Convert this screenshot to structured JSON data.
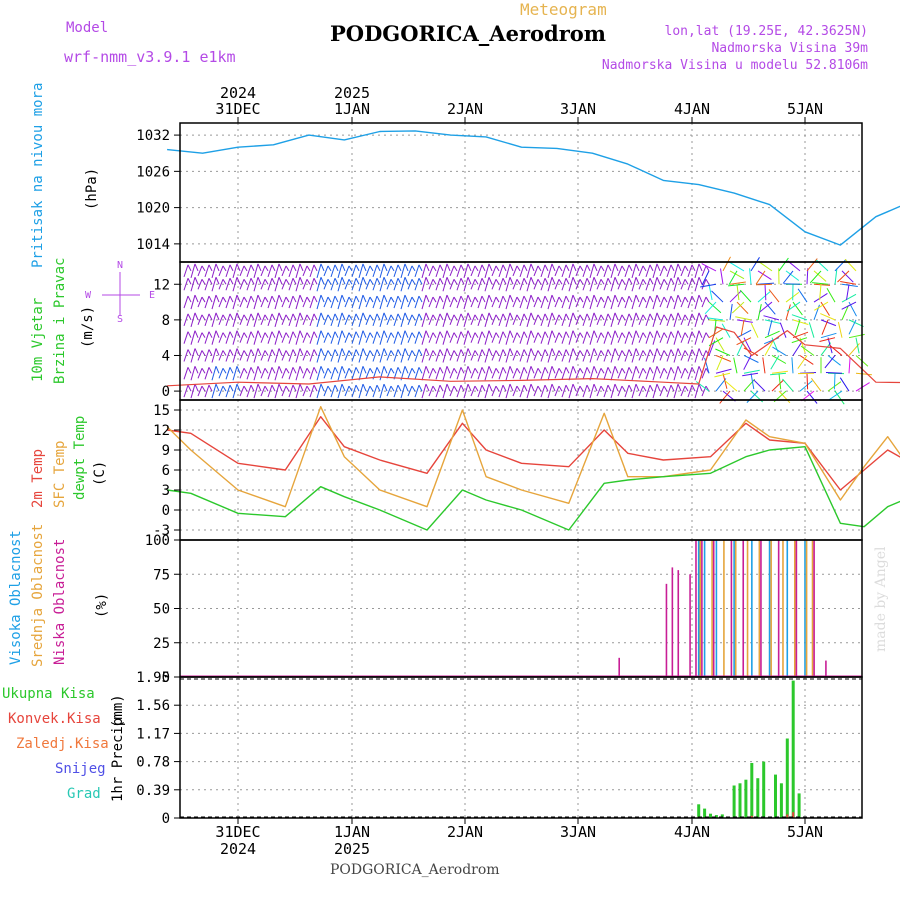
{
  "header": {
    "model_label": "Model",
    "model_name": "wrf-nmm_v3.9.1  e1km",
    "meteogram_label": "Meteogram",
    "station_title": "PODGORICA_Aerodrom",
    "lonlat": "lon,lat (19.25E, 42.3625N)",
    "elevation": "Nadmorska Visina 39m",
    "model_elevation": "Nadmorska Visina u modelu 52.8106m",
    "footer_station": "PODGORICA_Aerodrom",
    "credit": "made by Angel"
  },
  "colors": {
    "pressure": "#1ea0e6",
    "temp2m": "#e6453c",
    "sfc_temp": "#e6a53c",
    "dewpt": "#2cc82c",
    "high_cloud": "#1ea0e6",
    "mid_cloud": "#e6a53c",
    "low_cloud": "#c81e96",
    "total_precip": "#2cc82c",
    "conv_precip": "#e6453c",
    "frozen_precip": "#f0783c",
    "snow": "#5050e6",
    "graupel": "#28c8b4",
    "wind_purple": "#8c1ec8",
    "wind_blue": "#1e5ae6",
    "title_purple": "#b44ae6",
    "meteogram_orange": "#e6b450"
  },
  "time_axis": {
    "top_day_labels": [
      "31DEC",
      "1JAN",
      "2JAN",
      "3JAN",
      "4JAN",
      "5JAN"
    ],
    "top_year_labels": [
      "2024",
      "2025"
    ],
    "bottom_day_labels": [
      "31DEC",
      "1JAN",
      "2JAN",
      "3JAN",
      "4JAN",
      "5JAN"
    ],
    "bottom_year_labels": [
      "2024",
      "2025"
    ]
  },
  "chart_data": [
    {
      "type": "line",
      "panel": "pressure",
      "ylabel": "Pritisak na nivou mora",
      "unit": "(hPa)",
      "yticks": [
        "1014",
        "1020",
        "1026",
        "1032"
      ],
      "ylim": [
        1011,
        1034
      ],
      "grid": true,
      "x": [
        "30DEC12",
        "30DEC18",
        "31DEC00",
        "31DEC06",
        "31DEC12",
        "31DEC18",
        "1JAN00",
        "1JAN06",
        "1JAN12",
        "1JAN18",
        "2JAN00",
        "2JAN06",
        "2JAN12",
        "2JAN18",
        "3JAN00",
        "3JAN06",
        "3JAN12",
        "3JAN18",
        "4JAN00",
        "4JAN06",
        "4JAN12",
        "4JAN18",
        "5JAN00",
        "5JAN06",
        "5JAN12"
      ],
      "values": [
        1029.6,
        1029.0,
        1030.0,
        1030.4,
        1032.0,
        1031.2,
        1032.6,
        1032.7,
        1032.0,
        1031.7,
        1030.0,
        1029.8,
        1029.0,
        1027.2,
        1024.5,
        1023.8,
        1022.4,
        1020.5,
        1016.0,
        1013.8,
        1018.5,
        1021.0,
        1019.2,
        1020.2,
        1020.4
      ]
    },
    {
      "type": "line",
      "panel": "wind",
      "ylabel": "10m Vjetar Brzina i Pravac",
      "unit": "(m/s)",
      "compass": [
        "N",
        "W",
        "E",
        "S"
      ],
      "yticks": [
        "0",
        "4",
        "8",
        "12"
      ],
      "ylim": [
        -1,
        14.5
      ],
      "grid": true,
      "series": [
        {
          "name": "wind speed",
          "x": [
            "30DEC12",
            "31DEC00",
            "31DEC12",
            "1JAN00",
            "1JAN12",
            "2JAN00",
            "2JAN12",
            "3JAN00",
            "3JAN06",
            "3JAN09",
            "3JAN12",
            "3JAN15",
            "3JAN18",
            "3JAN21",
            "4JAN00",
            "4JAN06",
            "4JAN12",
            "5JAN00",
            "5JAN12"
          ],
          "values": [
            0.6,
            1.0,
            0.8,
            1.6,
            1.1,
            1.2,
            1.4,
            1.0,
            0.8,
            7.2,
            6.6,
            4.0,
            5.4,
            6.8,
            5.2,
            4.8,
            1.0,
            0.9,
            1.2
          ]
        }
      ]
    },
    {
      "type": "line",
      "panel": "temperature",
      "ylabel": "",
      "unit": "(C)",
      "yticks": [
        "-3",
        "0",
        "3",
        "6",
        "9",
        "12",
        "15"
      ],
      "ylim": [
        -4.5,
        16.5
      ],
      "grid": true,
      "series": [
        {
          "name": "2m Temp",
          "x": [
            "30DEC12",
            "30DEC16",
            "31DEC00",
            "31DEC08",
            "31DEC14",
            "31DEC18",
            "1JAN00",
            "1JAN08",
            "1JAN14",
            "1JAN18",
            "2JAN00",
            "2JAN08",
            "2JAN14",
            "2JAN18",
            "3JAN00",
            "3JAN08",
            "3JAN14",
            "3JAN18",
            "4JAN00",
            "4JAN06",
            "4JAN10",
            "4JAN14",
            "4JAN18",
            "5JAN00",
            "5JAN06",
            "5JAN12"
          ],
          "values": [
            12.0,
            11.5,
            7.0,
            6.0,
            14.0,
            9.5,
            7.5,
            5.5,
            13.0,
            9.0,
            7.0,
            6.5,
            12.0,
            8.5,
            7.5,
            8.0,
            13.0,
            10.5,
            10.0,
            3.0,
            6.0,
            9.0,
            7.0,
            5.0,
            2.5,
            9.5
          ]
        },
        {
          "name": "SFC Temp",
          "x": [
            "30DEC12",
            "30DEC16",
            "31DEC00",
            "31DEC08",
            "31DEC14",
            "31DEC18",
            "1JAN00",
            "1JAN08",
            "1JAN14",
            "1JAN18",
            "2JAN00",
            "2JAN08",
            "2JAN14",
            "2JAN18",
            "3JAN00",
            "3JAN08",
            "3JAN14",
            "3JAN18",
            "4JAN00",
            "4JAN06",
            "4JAN10",
            "4JAN14",
            "4JAN18",
            "5JAN00",
            "5JAN06",
            "5JAN12"
          ],
          "values": [
            12.5,
            9.0,
            3.0,
            0.5,
            15.5,
            8.0,
            3.0,
            0.5,
            15.0,
            5.0,
            3.0,
            1.0,
            14.5,
            5.0,
            5.0,
            6.0,
            13.5,
            11.0,
            10.0,
            1.5,
            6.5,
            11.0,
            6.0,
            2.5,
            -1.0,
            12.5
          ]
        },
        {
          "name": "dewpt Temp",
          "x": [
            "30DEC12",
            "30DEC16",
            "31DEC00",
            "31DEC08",
            "31DEC14",
            "31DEC18",
            "1JAN00",
            "1JAN08",
            "1JAN14",
            "1JAN18",
            "2JAN00",
            "2JAN08",
            "2JAN14",
            "2JAN18",
            "3JAN00",
            "3JAN08",
            "3JAN14",
            "3JAN18",
            "4JAN00",
            "4JAN06",
            "4JAN10",
            "4JAN14",
            "4JAN18",
            "5JAN00",
            "5JAN06",
            "5JAN12"
          ],
          "values": [
            3.0,
            2.5,
            -0.5,
            -1.0,
            3.5,
            2.0,
            0.0,
            -3.0,
            3.0,
            1.5,
            0.0,
            -3.0,
            4.0,
            4.5,
            5.0,
            5.5,
            8.0,
            9.0,
            9.5,
            -2.0,
            -2.5,
            0.5,
            2.0,
            -1.0,
            -2.5,
            3.0
          ]
        }
      ]
    },
    {
      "type": "bar",
      "panel": "cloud",
      "ylabel": "",
      "unit": "(%)",
      "yticks": [
        "0",
        "25",
        "50",
        "75",
        "100"
      ],
      "ylim": [
        0,
        100
      ],
      "grid": true,
      "series": [
        {
          "name": "Visoka Oblacnost",
          "x": [
            "3JAN06",
            "3JAN07",
            "3JAN09",
            "3JAN12",
            "3JAN15",
            "3JAN18",
            "3JAN21",
            "4JAN00",
            "4JAN20",
            "4JAN21",
            "4JAN23"
          ],
          "values": [
            100,
            100,
            100,
            100,
            100,
            100,
            100,
            100,
            100,
            100,
            100
          ]
        },
        {
          "name": "Srednja Oblacnost",
          "x": [
            "3JAN06",
            "3JAN08",
            "3JAN10",
            "3JAN12",
            "3JAN14",
            "3JAN16",
            "3JAN18",
            "3JAN20",
            "3JAN22",
            "4JAN00",
            "4JAN01",
            "4JAN20",
            "4JAN22",
            "5JAN00",
            "5JAN02",
            "5JAN04"
          ],
          "values": [
            100,
            100,
            100,
            100,
            100,
            100,
            100,
            100,
            100,
            100,
            100,
            100,
            100,
            100,
            100,
            100
          ]
        },
        {
          "name": "Niska Oblacnost",
          "x": [
            "2JAN16",
            "3JAN00",
            "3JAN01",
            "3JAN02",
            "3JAN04",
            "3JAN05",
            "3JAN06",
            "3JAN08",
            "3JAN11",
            "3JAN13",
            "3JAN16",
            "3JAN19",
            "3JAN22",
            "4JAN01",
            "4JAN03",
            "4JAN19",
            "4JAN20",
            "5JAN01",
            "5JAN05",
            "5JAN12"
          ],
          "values": [
            14,
            68,
            80,
            78,
            75,
            100,
            100,
            100,
            100,
            100,
            100,
            100,
            100,
            100,
            12,
            35,
            100,
            100,
            37,
            10
          ]
        }
      ]
    },
    {
      "type": "bar",
      "panel": "precipitation",
      "ylabel": "1hr Precip",
      "unit": "(mm)",
      "yticks": [
        "0",
        "0.39",
        "0.78",
        "1.17",
        "1.56",
        "1.95"
      ],
      "ylim": [
        0,
        1.95
      ],
      "grid": true,
      "series": [
        {
          "name": "Ukupna Kisa",
          "x": [
            "3JAN06",
            "3JAN07",
            "3JAN08",
            "3JAN09",
            "3JAN10",
            "3JAN12",
            "3JAN13",
            "3JAN14",
            "3JAN15",
            "3JAN16",
            "3JAN17",
            "3JAN19",
            "3JAN20",
            "3JAN21",
            "3JAN22",
            "3JAN23"
          ],
          "values": [
            0.19,
            0.13,
            0.06,
            0.04,
            0.05,
            0.45,
            0.48,
            0.53,
            0.76,
            0.55,
            0.78,
            0.6,
            0.48,
            1.1,
            1.9,
            0.34
          ]
        },
        {
          "name": "Konvek.Kisa",
          "x": [
            "3JAN06",
            "3JAN07",
            "3JAN12",
            "3JAN15",
            "3JAN17",
            "3JAN21",
            "3JAN22"
          ],
          "values": [
            0.02,
            0.01,
            0.02,
            0.03,
            0.02,
            0.05,
            0.08
          ]
        }
      ],
      "legend_only": [
        "Zaledj.Kisa",
        "Snijeg",
        "Grad"
      ]
    }
  ],
  "panel_side_labels": {
    "pressure": [
      "Pritisak na nivou mora"
    ],
    "wind": [
      "10m Vjetar",
      "Brzina i Pravac"
    ],
    "temperature": [
      "2m Temp",
      "SFC Temp",
      "dewpt Temp"
    ],
    "cloud": [
      "Visoka Oblacnost",
      "Srednja Oblacnost",
      "Niska Oblacnost"
    ],
    "precipitation": [
      "Ukupna Kisa",
      "Konvek.Kisa",
      "Zaledj.Kisa",
      "Snijeg",
      "Grad"
    ]
  }
}
